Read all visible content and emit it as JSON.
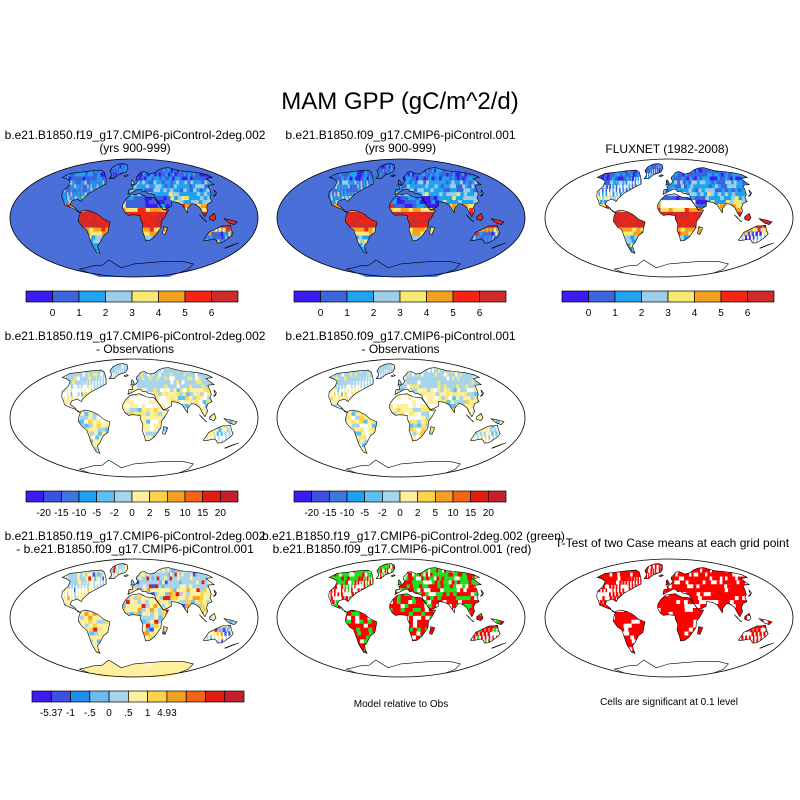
{
  "title": "MAM GPP (gC/m^2/d)",
  "panels": [
    {
      "title1": "b.e21.B1850.f19_g17.CMIP6-piControl-2deg.002",
      "title2": "(yrs 900-999)",
      "kind": "gpp"
    },
    {
      "title1": "b.e21.B1850.f09_g17.CMIP6-piControl.001",
      "title2": "(yrs 900-999)",
      "kind": "gpp"
    },
    {
      "title1": "FLUXNET (1982-2008)",
      "title2": "",
      "kind": "gpp"
    },
    {
      "title1": "b.e21.B1850.f19_g17.CMIP6-piControl-2deg.002",
      "title2": "- Observations",
      "kind": "diff"
    },
    {
      "title1": "b.e21.B1850.f09_g17.CMIP6-piControl.001",
      "title2": "- Observations",
      "kind": "diff"
    },
    {
      "title1": "b.e21.B1850.f19_g17.CMIP6-piControl-2deg.002",
      "title2": "- b.e21.B1850.f09_g17.CMIP6-piControl.001",
      "kind": "casediff"
    },
    {
      "title1": "b.e21.B1850.f19_g17.CMIP6-piControl-2deg.002 (green)",
      "title2": "b.e21.B1850.f09_g17.CMIP6-piControl.001 (red)",
      "kind": "relative"
    },
    {
      "title1": "T-Test of two Case means at each grid point",
      "title2": "",
      "kind": "ttest"
    }
  ],
  "notes": {
    "relative": "Model relative to Obs",
    "ttest": "Cells are significant at 0.1 level"
  },
  "chart_data": [
    {
      "type": "heatmap",
      "name": "gpp_colorbar",
      "tick_labels": [
        "0",
        "1",
        "2",
        "3",
        "4",
        "5",
        "6"
      ],
      "colors": [
        "#3a1cf2",
        "#3c64dc",
        "#1ea3f0",
        "#9ecdea",
        "#f6e870",
        "#f5a01e",
        "#f52512",
        "#d22a2a"
      ]
    },
    {
      "type": "heatmap",
      "name": "obs_diff_colorbar",
      "tick_labels": [
        "-20",
        "-15",
        "-10",
        "-5",
        "-2",
        "0",
        "2",
        "5",
        "10",
        "15",
        "20"
      ],
      "colors": [
        "#3a1cf2",
        "#3c50e6",
        "#3c78dc",
        "#1ea0f0",
        "#5cc0f0",
        "#a6d4ec",
        "#fff0a0",
        "#fcd24a",
        "#f5a01e",
        "#f56414",
        "#e41c10",
        "#c81e2a"
      ]
    },
    {
      "type": "heatmap",
      "name": "case_diff_colorbar",
      "tick_labels": [
        "-5.37",
        "-1",
        "-.5",
        "0",
        ".5",
        "1",
        "4.93"
      ],
      "colors": [
        "#3a1cf2",
        "#3c50e6",
        "#1e8cf0",
        "#6cbcf0",
        "#a6d4ec",
        "#fff0a0",
        "#fcd24a",
        "#f5a01e",
        "#f56414",
        "#e41c10",
        "#c81e2a"
      ]
    }
  ]
}
